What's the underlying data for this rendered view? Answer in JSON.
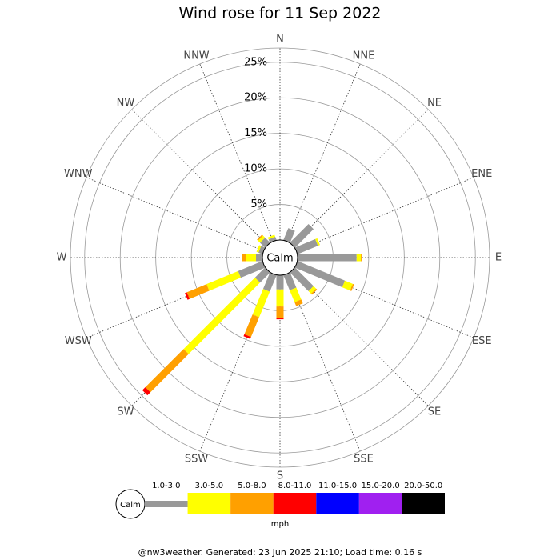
{
  "chart_data": {
    "type": "wind-rose",
    "title": "Wind rose for 11 Sep 2022",
    "directions": [
      "N",
      "NNE",
      "NE",
      "ENE",
      "E",
      "ESE",
      "SE",
      "SSE",
      "S",
      "SSW",
      "SW",
      "WSW",
      "W",
      "WNW",
      "NW",
      "NNW"
    ],
    "rlim": [
      0,
      27
    ],
    "rticks": [
      {
        "value": 5,
        "label": "5%"
      },
      {
        "value": 10,
        "label": "10%"
      },
      {
        "value": 15,
        "label": "15%"
      },
      {
        "value": 20,
        "label": "20%"
      },
      {
        "value": 25,
        "label": "25%"
      }
    ],
    "calm_label": "Calm",
    "unit_label": "mph",
    "series": [
      {
        "name": "1.0-3.0",
        "color": "#999999",
        "values": [
          0,
          1.8,
          3.7,
          3.1,
          8.3,
          7.2,
          3.7,
          2.3,
          2.0,
          2.5,
          2.0,
          3.7,
          0.9,
          0.6,
          1.0,
          0.5
        ]
      },
      {
        "name": "3.0-5.0",
        "color": "#ffff00",
        "values": [
          0,
          0,
          0,
          0.3,
          0.6,
          1.2,
          0.5,
          1.8,
          2.4,
          3.9,
          14.2,
          4.8,
          1.4,
          0.3,
          0.4,
          0.3
        ]
      },
      {
        "name": "5.0-8.0",
        "color": "#ffa000",
        "values": [
          0,
          0,
          0,
          0,
          0.1,
          0.2,
          0.2,
          0.6,
          1.6,
          3.0,
          7.6,
          3.0,
          0.6,
          0,
          0.2,
          0
        ]
      },
      {
        "name": "8.0-11.0",
        "color": "#ff0000",
        "values": [
          0,
          0,
          0,
          0,
          0,
          0,
          0,
          0,
          0.2,
          0.3,
          0.6,
          0.3,
          0,
          0,
          0,
          0
        ]
      },
      {
        "name": "11.0-15.0",
        "color": "#0000ff",
        "values": [
          0,
          0,
          0,
          0,
          0,
          0,
          0,
          0,
          0,
          0,
          0,
          0,
          0,
          0,
          0,
          0
        ]
      },
      {
        "name": "15.0-20.0",
        "color": "#a020f0",
        "values": [
          0,
          0,
          0,
          0,
          0,
          0,
          0,
          0,
          0,
          0,
          0,
          0,
          0,
          0,
          0,
          0
        ]
      },
      {
        "name": "20.0-50.0",
        "color": "#000000",
        "values": [
          0,
          0,
          0,
          0,
          0,
          0,
          0,
          0,
          0,
          0,
          0,
          0,
          0,
          0,
          0,
          0
        ]
      }
    ]
  },
  "footer": "@nw3weather. Generated: 23 Jun 2025 21:10; Load time: 0.16 s"
}
